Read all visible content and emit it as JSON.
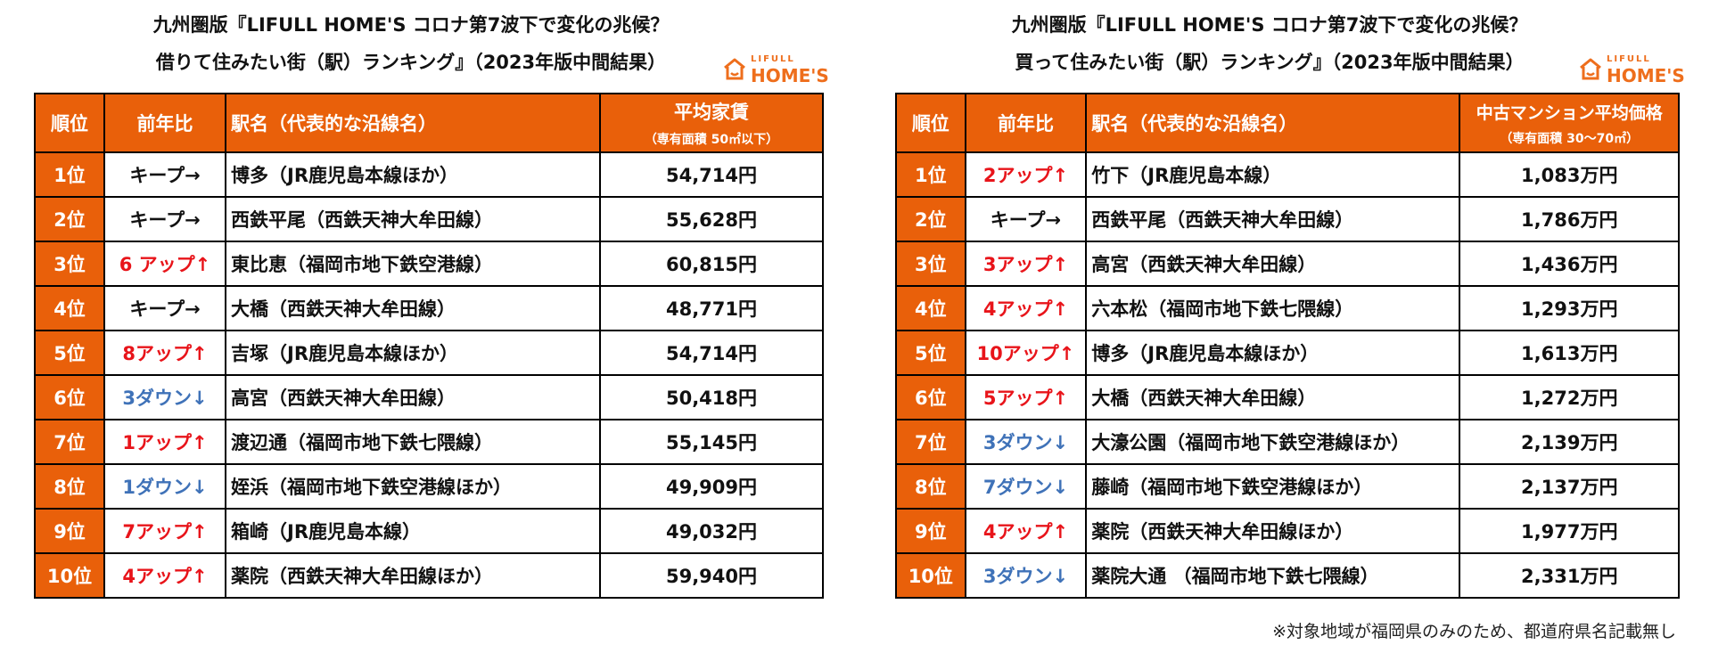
{
  "left": {
    "title_line1": "九州圏版『LIFULL HOME'S コロナ第7波下で変化の兆候？",
    "title_line2": "借りて住みたい街（駅）ランキング』（2023年版中間結果）",
    "logo_top": "LIFULL",
    "logo_bottom": "HOME'S",
    "headers": {
      "rank": "順位",
      "change": "前年比",
      "station": "駅名（代表的な沿線名）",
      "price_main": "平均家賃",
      "price_sub": "（専有面積 50㎡以下）"
    },
    "rows": [
      {
        "rank": "1位",
        "change": "キープ→",
        "change_type": "keep",
        "station": "博多（JR鹿児島本線ほか）",
        "price": "54,714円"
      },
      {
        "rank": "2位",
        "change": "キープ→",
        "change_type": "keep",
        "station": "西鉄平尾（西鉄天神大牟田線）",
        "price": "55,628円"
      },
      {
        "rank": "3位",
        "change": "6 アップ↑",
        "change_type": "up",
        "station": "東比恵（福岡市地下鉄空港線）",
        "price": "60,815円"
      },
      {
        "rank": "4位",
        "change": "キープ→",
        "change_type": "keep",
        "station": "大橋（西鉄天神大牟田線）",
        "price": "48,771円"
      },
      {
        "rank": "5位",
        "change": "8アップ↑",
        "change_type": "up",
        "station": "吉塚（JR鹿児島本線ほか）",
        "price": "54,714円"
      },
      {
        "rank": "6位",
        "change": "3ダウン↓",
        "change_type": "down",
        "station": "高宮（西鉄天神大牟田線）",
        "price": "50,418円"
      },
      {
        "rank": "7位",
        "change": "1アップ↑",
        "change_type": "up",
        "station": "渡辺通（福岡市地下鉄七隈線）",
        "price": "55,145円"
      },
      {
        "rank": "8位",
        "change": "1ダウン↓",
        "change_type": "down",
        "station": "姪浜（福岡市地下鉄空港線ほか）",
        "price": "49,909円"
      },
      {
        "rank": "9位",
        "change": "7アップ↑",
        "change_type": "up",
        "station": "箱崎（JR鹿児島本線）",
        "price": "49,032円"
      },
      {
        "rank": "10位",
        "change": "4アップ↑",
        "change_type": "up",
        "station": "薬院（西鉄天神大牟田線ほか）",
        "price": "59,940円"
      }
    ]
  },
  "right": {
    "title_line1": "九州圏版『LIFULL HOME'S コロナ第7波下で変化の兆候？",
    "title_line2": "買って住みたい街（駅）ランキング』（2023年版中間結果）",
    "logo_top": "LIFULL",
    "logo_bottom": "HOME'S",
    "headers": {
      "rank": "順位",
      "change": "前年比",
      "station": "駅名（代表的な沿線名）",
      "price_main": "中古マンション平均価格",
      "price_sub": "（専有面積 30～70㎡）"
    },
    "rows": [
      {
        "rank": "1位",
        "change": "2アップ↑",
        "change_type": "up",
        "station": "竹下（JR鹿児島本線）",
        "price": "1,083万円"
      },
      {
        "rank": "2位",
        "change": "キープ→",
        "change_type": "keep",
        "station": "西鉄平尾（西鉄天神大牟田線）",
        "price": "1,786万円"
      },
      {
        "rank": "3位",
        "change": "3アップ↑",
        "change_type": "up",
        "station": "高宮（西鉄天神大牟田線）",
        "price": "1,436万円"
      },
      {
        "rank": "4位",
        "change": "4アップ↑",
        "change_type": "up",
        "station": "六本松（福岡市地下鉄七隈線）",
        "price": "1,293万円"
      },
      {
        "rank": "5位",
        "change": "10アップ↑",
        "change_type": "up",
        "station": "博多（JR鹿児島本線ほか）",
        "price": "1,613万円"
      },
      {
        "rank": "6位",
        "change": "5アップ↑",
        "change_type": "up",
        "station": "大橋（西鉄天神大牟田線）",
        "price": "1,272万円"
      },
      {
        "rank": "7位",
        "change": "3ダウン↓",
        "change_type": "down",
        "station": "大濠公園（福岡市地下鉄空港線ほか）",
        "price": "2,139万円"
      },
      {
        "rank": "8位",
        "change": "7ダウン↓",
        "change_type": "down",
        "station": "藤崎（福岡市地下鉄空港線ほか）",
        "price": "2,137万円"
      },
      {
        "rank": "9位",
        "change": "4アップ↑",
        "change_type": "up",
        "station": "薬院（西鉄天神大牟田線ほか）",
        "price": "1,977万円"
      },
      {
        "rank": "10位",
        "change": "3ダウン↓",
        "change_type": "down",
        "station": "薬院大通 （福岡市地下鉄七隈線）",
        "price": "2,331万円"
      }
    ],
    "footnote": "※対象地域が福岡県のみのため、都道府県名記載無し"
  },
  "colors": {
    "header_bg": "#e9600a",
    "up": "#e8141a",
    "down": "#3f72b8",
    "keep": "#111111",
    "logo": "#ee6e1c"
  },
  "icons": {
    "logo": "house-icon"
  }
}
